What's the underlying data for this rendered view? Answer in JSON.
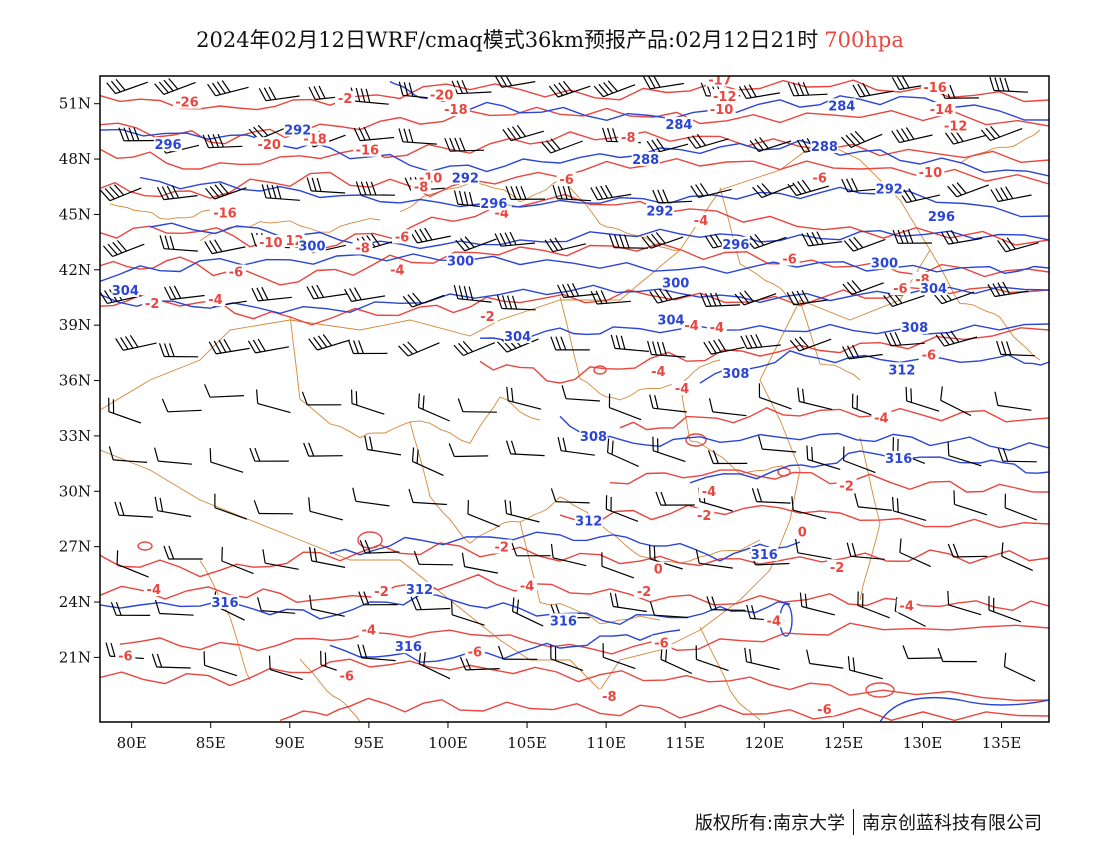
{
  "title": {
    "main": "2024年02月12日WRF/cmaq模式36km预报产品:02月12日21时",
    "level": "700hpa",
    "level_color": "#e8463f"
  },
  "map": {
    "lon_range": [
      78,
      138
    ],
    "lat_range": [
      17.5,
      52.5
    ],
    "lon_ticks": [
      "80E",
      "85E",
      "90E",
      "95E",
      "100E",
      "105E",
      "110E",
      "115E",
      "120E",
      "125E",
      "130E",
      "135E"
    ],
    "lat_ticks": [
      "51N",
      "48N",
      "45N",
      "42N",
      "39N",
      "36N",
      "33N",
      "30N",
      "27N",
      "24N",
      "21N"
    ],
    "colors": {
      "temperature": "#e8463f",
      "geopotential": "#2a45d6",
      "boundary": "#d4883a",
      "wind": "#000000"
    },
    "temperature_labels": [
      {
        "text": "-26",
        "lon": 83.5,
        "lat": 51
      },
      {
        "text": "-2",
        "lon": 93.5,
        "lat": 51.2
      },
      {
        "text": "-20",
        "lon": 99.6,
        "lat": 51.4
      },
      {
        "text": "-18",
        "lon": 100.5,
        "lat": 50.6
      },
      {
        "text": "-20",
        "lon": 88.7,
        "lat": 48.7
      },
      {
        "text": "-18",
        "lon": 91.6,
        "lat": 49
      },
      {
        "text": "-16",
        "lon": 94.9,
        "lat": 48.4
      },
      {
        "text": "-17",
        "lon": 117.2,
        "lat": 52.2
      },
      {
        "text": "-12",
        "lon": 117.5,
        "lat": 51.3
      },
      {
        "text": "-10",
        "lon": 117.3,
        "lat": 50.6
      },
      {
        "text": "-8",
        "lon": 111.4,
        "lat": 49.1
      },
      {
        "text": "-10",
        "lon": 98.9,
        "lat": 46.9
      },
      {
        "text": "-8",
        "lon": 98.3,
        "lat": 46.4
      },
      {
        "text": "-6",
        "lon": 107.5,
        "lat": 46.8
      },
      {
        "text": "-16",
        "lon": 85.9,
        "lat": 45
      },
      {
        "text": "-10",
        "lon": 88.8,
        "lat": 43.4
      },
      {
        "text": "12",
        "lon": 90.3,
        "lat": 43.5
      },
      {
        "text": "-8",
        "lon": 94.6,
        "lat": 43.1
      },
      {
        "text": "-6",
        "lon": 97.1,
        "lat": 43.7
      },
      {
        "text": "-4",
        "lon": 103.4,
        "lat": 45
      },
      {
        "text": "-6",
        "lon": 123.5,
        "lat": 46.9
      },
      {
        "text": "-4",
        "lon": 116,
        "lat": 44.6
      },
      {
        "text": "-6",
        "lon": 121.6,
        "lat": 42.5
      },
      {
        "text": "-16",
        "lon": 130.8,
        "lat": 51.8
      },
      {
        "text": "-14",
        "lon": 131.2,
        "lat": 50.6
      },
      {
        "text": "-12",
        "lon": 132.1,
        "lat": 49.7
      },
      {
        "text": "-10",
        "lon": 130.5,
        "lat": 47.2
      },
      {
        "text": "-8",
        "lon": 130,
        "lat": 41.4
      },
      {
        "text": "-6",
        "lon": 128.6,
        "lat": 40.9
      },
      {
        "text": "-4",
        "lon": 96.8,
        "lat": 41.9
      },
      {
        "text": "-6",
        "lon": 86.6,
        "lat": 41.8
      },
      {
        "text": "-4",
        "lon": 85.3,
        "lat": 40.3
      },
      {
        "text": "-2",
        "lon": 81.3,
        "lat": 40.1
      },
      {
        "text": "-2",
        "lon": 102.5,
        "lat": 39.4
      },
      {
        "text": "-4",
        "lon": 115.4,
        "lat": 38.9
      },
      {
        "text": "-4",
        "lon": 113.3,
        "lat": 36.4
      },
      {
        "text": "-4",
        "lon": 114.8,
        "lat": 35.5
      },
      {
        "text": "-6",
        "lon": 130.4,
        "lat": 37.3
      },
      {
        "text": "-4",
        "lon": 127.4,
        "lat": 33.9
      },
      {
        "text": "-4",
        "lon": 116.5,
        "lat": 29.9
      },
      {
        "text": "-2",
        "lon": 116.2,
        "lat": 28.6
      },
      {
        "text": "-2",
        "lon": 125.2,
        "lat": 30.2
      },
      {
        "text": "0",
        "lon": 122.4,
        "lat": 27.7
      },
      {
        "text": "-2",
        "lon": 103.4,
        "lat": 26.9
      },
      {
        "text": "-2",
        "lon": 95.8,
        "lat": 24.5
      },
      {
        "text": "0",
        "lon": 113.3,
        "lat": 25.7
      },
      {
        "text": "-2",
        "lon": 112.4,
        "lat": 24.5
      },
      {
        "text": "-4",
        "lon": 105,
        "lat": 24.8
      },
      {
        "text": "-2",
        "lon": 124.6,
        "lat": 25.8
      },
      {
        "text": "-4",
        "lon": 81.4,
        "lat": 24.6
      },
      {
        "text": "-4",
        "lon": 129,
        "lat": 23.7
      },
      {
        "text": "-4",
        "lon": 95,
        "lat": 22.4
      },
      {
        "text": "-4",
        "lon": 120.6,
        "lat": 22.9
      },
      {
        "text": "-6",
        "lon": 79.6,
        "lat": 21
      },
      {
        "text": "-6",
        "lon": 93.6,
        "lat": 19.9
      },
      {
        "text": "-6",
        "lon": 101.7,
        "lat": 21.2
      },
      {
        "text": "-6",
        "lon": 113.5,
        "lat": 21.7
      },
      {
        "text": "-8",
        "lon": 110.2,
        "lat": 18.8
      },
      {
        "text": "-6",
        "lon": 123.8,
        "lat": 18.1
      },
      {
        "text": "-4",
        "lon": 117,
        "lat": 38.8
      }
    ],
    "geopotential_labels": [
      {
        "text": "296",
        "lon": 82.3,
        "lat": 48.7
      },
      {
        "text": "292",
        "lon": 90.5,
        "lat": 49.5
      },
      {
        "text": "292",
        "lon": 101.1,
        "lat": 46.9
      },
      {
        "text": "284",
        "lon": 114.6,
        "lat": 49.8
      },
      {
        "text": "288",
        "lon": 112.5,
        "lat": 47.9
      },
      {
        "text": "288",
        "lon": 123.8,
        "lat": 48.6
      },
      {
        "text": "284",
        "lon": 124.9,
        "lat": 50.8
      },
      {
        "text": "292",
        "lon": 127.9,
        "lat": 46.3
      },
      {
        "text": "296",
        "lon": 102.9,
        "lat": 45.5
      },
      {
        "text": "292",
        "lon": 113.4,
        "lat": 45.1
      },
      {
        "text": "296",
        "lon": 118.2,
        "lat": 43.3
      },
      {
        "text": "296",
        "lon": 131.2,
        "lat": 44.8
      },
      {
        "text": "300",
        "lon": 91.4,
        "lat": 43.2
      },
      {
        "text": "300",
        "lon": 100.8,
        "lat": 42.4
      },
      {
        "text": "300",
        "lon": 114.4,
        "lat": 41.2
      },
      {
        "text": "300",
        "lon": 127.6,
        "lat": 42.3
      },
      {
        "text": "304",
        "lon": 79.6,
        "lat": 40.8
      },
      {
        "text": "304",
        "lon": 104.4,
        "lat": 38.3
      },
      {
        "text": "304",
        "lon": 130.7,
        "lat": 40.9
      },
      {
        "text": "304",
        "lon": 114.1,
        "lat": 39.2
      },
      {
        "text": "308",
        "lon": 118.2,
        "lat": 36.3
      },
      {
        "text": "308",
        "lon": 129.5,
        "lat": 38.8
      },
      {
        "text": "308",
        "lon": 109.2,
        "lat": 32.9
      },
      {
        "text": "312",
        "lon": 128.7,
        "lat": 36.5
      },
      {
        "text": "312",
        "lon": 108.9,
        "lat": 28.3
      },
      {
        "text": "312",
        "lon": 98.2,
        "lat": 24.6
      },
      {
        "text": "316",
        "lon": 128.5,
        "lat": 31.7
      },
      {
        "text": "316",
        "lon": 120,
        "lat": 26.5
      },
      {
        "text": "316",
        "lon": 85.9,
        "lat": 23.9
      },
      {
        "text": "316",
        "lon": 107.3,
        "lat": 22.9
      },
      {
        "text": "316",
        "lon": 97.5,
        "lat": 21.5
      }
    ]
  },
  "footer": {
    "left": "版权所有:南京大学",
    "right": "南京创蓝科技有限公司"
  }
}
